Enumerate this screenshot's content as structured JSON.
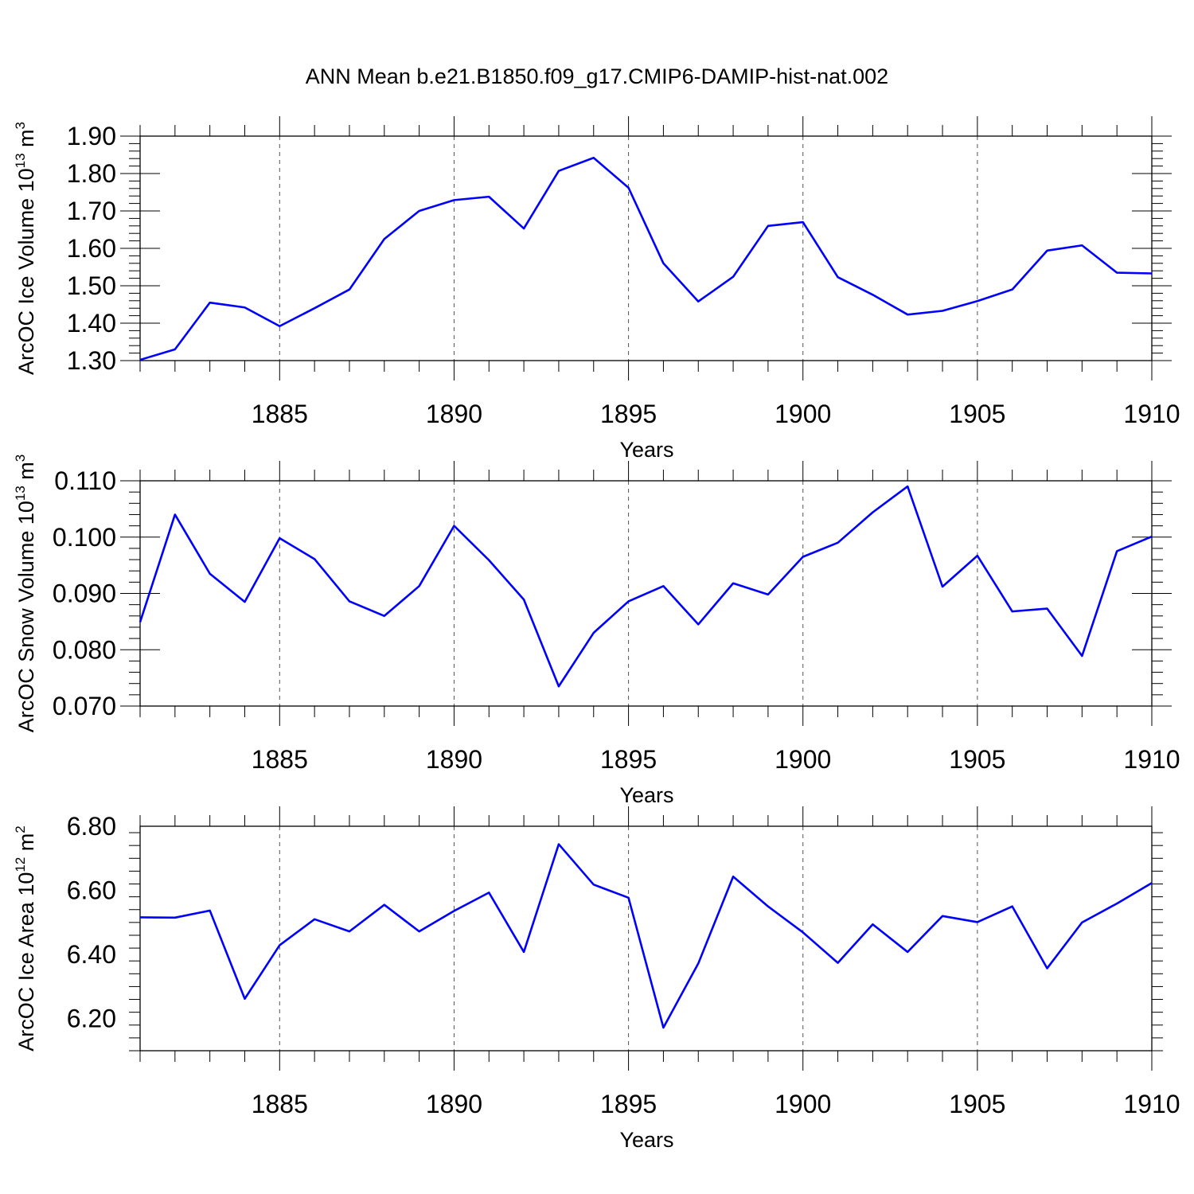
{
  "title": "ANN Mean b.e21.B1850.f09_g17.CMIP6-DAMIP-hist-nat.002",
  "line_color": "#0000ff",
  "chart_data": [
    {
      "type": "line",
      "ylabel": "ArcOC Ice Volume 10",
      "ylabel_exp": "13",
      "ylabel_unit": " m",
      "ylabel_unit_exp": "3",
      "xlabel": "Years",
      "xlim": [
        1881,
        1910
      ],
      "ylim": [
        1.3,
        1.9
      ],
      "yticks": [
        1.3,
        1.4,
        1.5,
        1.6,
        1.7,
        1.8,
        1.9
      ],
      "ytick_labels": [
        "1.30",
        "1.40",
        "1.50",
        "1.60",
        "1.70",
        "1.80",
        "1.90"
      ],
      "xticks": [
        1885,
        1890,
        1895,
        1900,
        1905,
        1910
      ],
      "xtick_labels": [
        "1885",
        "1890",
        "1895",
        "1900",
        "1905",
        "1910"
      ],
      "x": [
        1881,
        1882,
        1883,
        1884,
        1885,
        1886,
        1887,
        1888,
        1889,
        1890,
        1891,
        1892,
        1893,
        1894,
        1895,
        1896,
        1897,
        1898,
        1899,
        1900,
        1901,
        1902,
        1903,
        1904,
        1905,
        1906,
        1907,
        1908,
        1909,
        1910
      ],
      "values": [
        1.302,
        1.33,
        1.455,
        1.442,
        1.392,
        1.44,
        1.49,
        1.625,
        1.7,
        1.729,
        1.738,
        1.653,
        1.807,
        1.842,
        1.762,
        1.56,
        1.458,
        1.524,
        1.66,
        1.67,
        1.523,
        1.476,
        1.423,
        1.433,
        1.459,
        1.49,
        1.594,
        1.608,
        1.535,
        1.533
      ]
    },
    {
      "type": "line",
      "ylabel": "ArcOC Snow Volume 10",
      "ylabel_exp": "13",
      "ylabel_unit": " m",
      "ylabel_unit_exp": "3",
      "xlabel": "Years",
      "xlim": [
        1881,
        1910
      ],
      "ylim": [
        0.07,
        0.11
      ],
      "yticks": [
        0.07,
        0.08,
        0.09,
        0.1,
        0.11
      ],
      "ytick_labels": [
        "0.070",
        "0.080",
        "0.090",
        "0.100",
        "0.110"
      ],
      "xticks": [
        1885,
        1890,
        1895,
        1900,
        1905,
        1910
      ],
      "xtick_labels": [
        "1885",
        "1890",
        "1895",
        "1900",
        "1905",
        "1910"
      ],
      "x": [
        1881,
        1882,
        1883,
        1884,
        1885,
        1886,
        1887,
        1888,
        1889,
        1890,
        1891,
        1892,
        1893,
        1894,
        1895,
        1896,
        1897,
        1898,
        1899,
        1900,
        1901,
        1902,
        1903,
        1904,
        1905,
        1906,
        1907,
        1908,
        1909,
        1910
      ],
      "values": [
        0.0849,
        0.104,
        0.0935,
        0.0885,
        0.0998,
        0.0961,
        0.0886,
        0.086,
        0.0913,
        0.102,
        0.0959,
        0.0889,
        0.0735,
        0.083,
        0.0886,
        0.0913,
        0.0845,
        0.0918,
        0.0898,
        0.0965,
        0.099,
        0.1044,
        0.109,
        0.0912,
        0.0967,
        0.0868,
        0.0873,
        0.0789,
        0.0975,
        0.1001
      ]
    },
    {
      "type": "line",
      "ylabel": "ArcOC Ice Area 10",
      "ylabel_exp": "12",
      "ylabel_unit": " m",
      "ylabel_unit_exp": "2",
      "xlabel": "Years",
      "xlim": [
        1881,
        1910
      ],
      "ylim": [
        6.1,
        6.8
      ],
      "yticks": [
        6.2,
        6.4,
        6.6,
        6.8
      ],
      "ytick_labels": [
        "6.20",
        "6.40",
        "6.60",
        "6.80"
      ],
      "xticks": [
        1885,
        1890,
        1895,
        1900,
        1905,
        1910
      ],
      "xtick_labels": [
        "1885",
        "1890",
        "1895",
        "1900",
        "1905",
        "1910"
      ],
      "x": [
        1881,
        1882,
        1883,
        1884,
        1885,
        1886,
        1887,
        1888,
        1889,
        1890,
        1891,
        1892,
        1893,
        1894,
        1895,
        1896,
        1897,
        1898,
        1899,
        1900,
        1901,
        1902,
        1903,
        1904,
        1905,
        1906,
        1907,
        1908,
        1909,
        1910
      ],
      "values": [
        6.516,
        6.515,
        6.537,
        6.262,
        6.429,
        6.51,
        6.472,
        6.555,
        6.472,
        6.536,
        6.593,
        6.408,
        6.744,
        6.618,
        6.577,
        6.172,
        6.372,
        6.643,
        6.55,
        6.469,
        6.374,
        6.494,
        6.408,
        6.52,
        6.501,
        6.55,
        6.357,
        6.5,
        6.559,
        6.623
      ]
    }
  ]
}
